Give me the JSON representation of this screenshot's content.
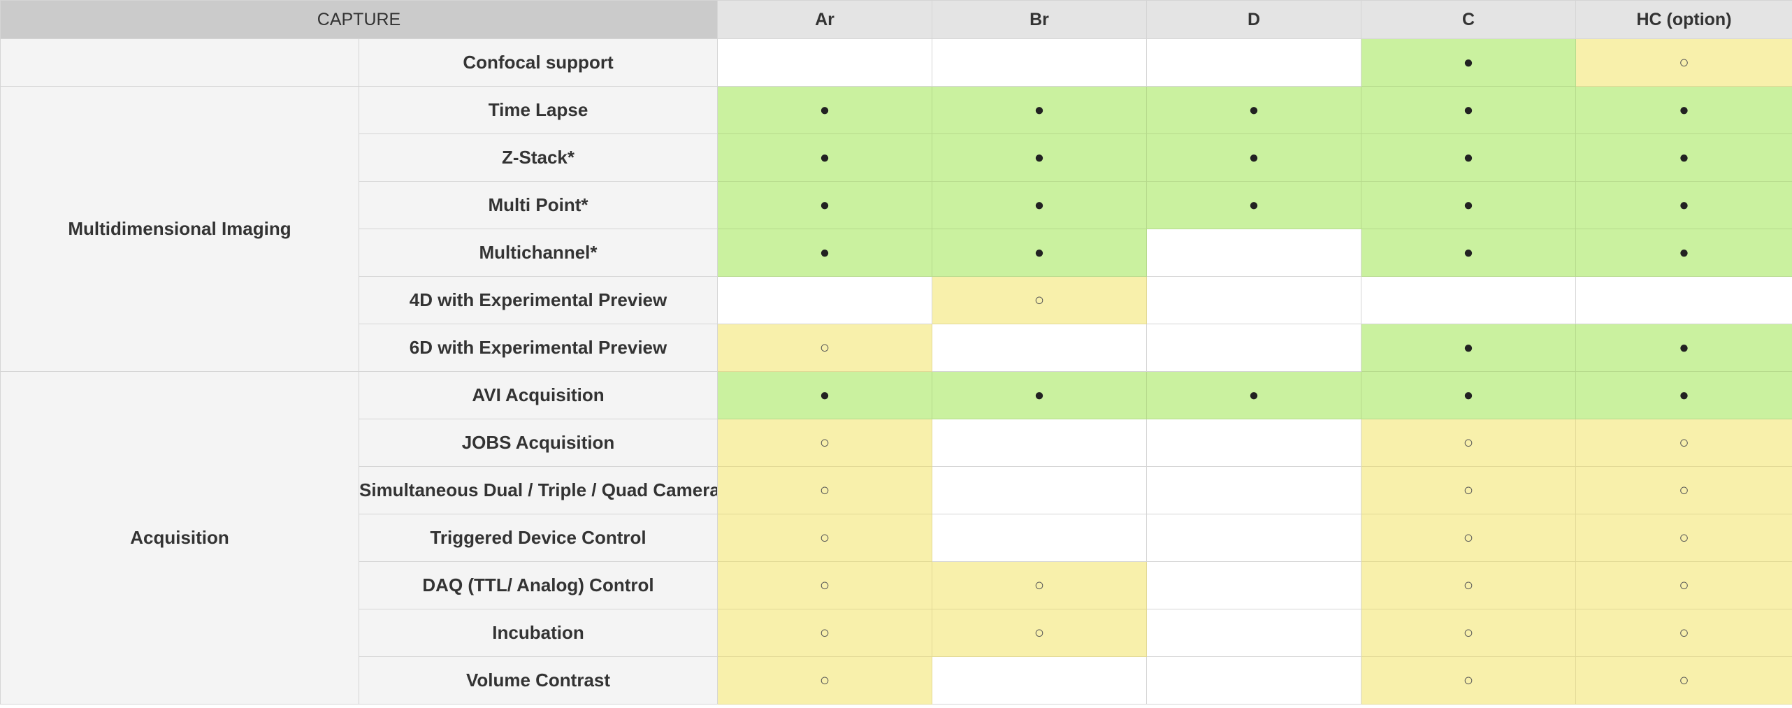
{
  "table": {
    "corner_label": "CAPTURE",
    "columns": [
      "Ar",
      "Br",
      "D",
      "C",
      "HC (option)"
    ],
    "symbols": {
      "full": "●",
      "option": "○"
    },
    "colors": {
      "full": "#caf19f",
      "option": "#f8f0ab",
      "none": "#ffffff"
    },
    "groups": [
      {
        "category": "",
        "features": [
          {
            "name": "Confocal support",
            "cells": [
              "",
              "",
              "",
              "full",
              "option"
            ]
          }
        ]
      },
      {
        "category": "Multidimensional Imaging",
        "features": [
          {
            "name": "Time Lapse",
            "cells": [
              "full",
              "full",
              "full",
              "full",
              "full"
            ]
          },
          {
            "name": "Z-Stack*",
            "cells": [
              "full",
              "full",
              "full",
              "full",
              "full"
            ]
          },
          {
            "name": "Multi Point*",
            "cells": [
              "full",
              "full",
              "full",
              "full",
              "full"
            ]
          },
          {
            "name": "Multichannel*",
            "cells": [
              "full",
              "full",
              "",
              "full",
              "full"
            ]
          },
          {
            "name": "4D with Experimental Preview",
            "cells": [
              "",
              "option",
              "",
              "",
              ""
            ]
          },
          {
            "name": "6D with Experimental Preview",
            "cells": [
              "option",
              "",
              "",
              "full",
              "full"
            ]
          }
        ]
      },
      {
        "category": "Acquisition",
        "features": [
          {
            "name": "AVI Acquisition",
            "cells": [
              "full",
              "full",
              "full",
              "full",
              "full"
            ]
          },
          {
            "name": "JOBS Acquisition",
            "cells": [
              "option",
              "",
              "",
              "option",
              "option"
            ]
          },
          {
            "name": "Simultaneous Dual / Triple / Quad Camera",
            "cells": [
              "option",
              "",
              "",
              "option",
              "option"
            ]
          },
          {
            "name": "Triggered Device Control",
            "cells": [
              "option",
              "",
              "",
              "option",
              "option"
            ]
          },
          {
            "name": "DAQ (TTL/ Analog) Control",
            "cells": [
              "option",
              "option",
              "",
              "option",
              "option"
            ]
          },
          {
            "name": "Incubation",
            "cells": [
              "option",
              "option",
              "",
              "option",
              "option"
            ]
          },
          {
            "name": "Volume Contrast",
            "cells": [
              "option",
              "",
              "",
              "option",
              "option"
            ]
          }
        ]
      }
    ]
  }
}
